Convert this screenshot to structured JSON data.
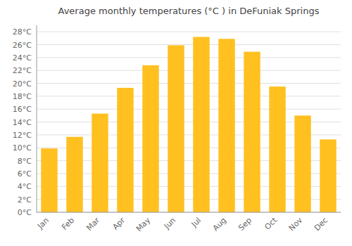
{
  "chart_data": {
    "type": "bar",
    "title": "Average monthly temperatures (°C ) in DeFuniak Springs",
    "categories": [
      "Jan",
      "Feb",
      "Mar",
      "Apr",
      "May",
      "Jun",
      "Jul",
      "Aug",
      "Sep",
      "Oct",
      "Nov",
      "Dec"
    ],
    "values": [
      9.9,
      11.7,
      15.3,
      19.3,
      22.8,
      25.9,
      27.2,
      26.9,
      24.9,
      19.5,
      15.0,
      11.3
    ],
    "color": "#FFC020",
    "ylim": [
      0,
      29
    ],
    "yticks": [
      {
        "value": 0,
        "label": "0°C"
      },
      {
        "value": 2,
        "label": "2°C"
      },
      {
        "value": 4,
        "label": "4°C"
      },
      {
        "value": 6,
        "label": "6°C"
      },
      {
        "value": 8,
        "label": "8°C"
      },
      {
        "value": 10,
        "label": "10°C"
      },
      {
        "value": 12,
        "label": "12°C"
      },
      {
        "value": 14,
        "label": "14°C"
      },
      {
        "value": 16,
        "label": "16°C"
      },
      {
        "value": 18,
        "label": "18°C"
      },
      {
        "value": 20,
        "label": "20°C"
      },
      {
        "value": 22,
        "label": "22°C"
      },
      {
        "value": 24,
        "label": "24°C"
      },
      {
        "value": 26,
        "label": "26°C"
      },
      {
        "value": 28,
        "label": "28°C"
      }
    ],
    "grid": true
  }
}
